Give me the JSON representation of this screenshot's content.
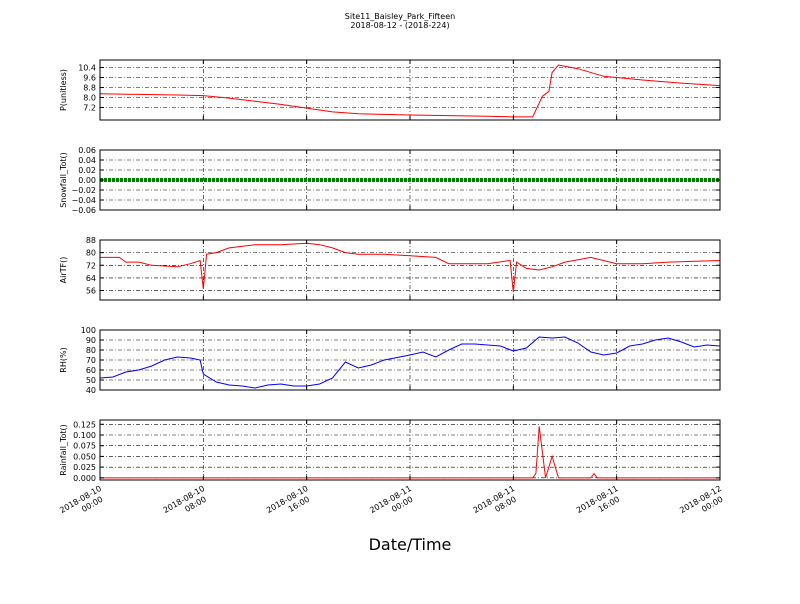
{
  "figure": {
    "title": "Site11_Baisley_Park_Fifteen",
    "subtitle": "2018-08-12 - (2018-224)",
    "xlabel": "Date/Time"
  },
  "chart_data": {
    "type": "line",
    "x_axis": {
      "type": "datetime",
      "range": [
        "2018-08-10 00:00",
        "2018-08-12 00:00"
      ],
      "ticks": [
        "2018-08-10 00:00",
        "2018-08-10 08:00",
        "2018-08-10 16:00",
        "2018-08-11 00:00",
        "2018-08-11 08:00",
        "2018-08-11 16:00",
        "2018-08-12 00:00"
      ],
      "tick_labels": [
        [
          "2018-08-10",
          "00:00"
        ],
        [
          "2018-08-10",
          "08:00"
        ],
        [
          "2018-08-10",
          "16:00"
        ],
        [
          "2018-08-11",
          "00:00"
        ],
        [
          "2018-08-11",
          "08:00"
        ],
        [
          "2018-08-11",
          "16:00"
        ],
        [
          "2018-08-12",
          "00:00"
        ]
      ]
    },
    "grid": true,
    "panels": [
      {
        "ylabel": "P(unitless)",
        "ylim": [
          6.2,
          11.0
        ],
        "yticks": [
          7.2,
          8.0,
          8.8,
          9.6,
          10.4
        ],
        "ytick_labels": [
          "7.2",
          "8.0",
          "8.8",
          "9.6",
          "10.4"
        ],
        "color": "#ff0000",
        "points": [
          [
            "2018-08-10 00:00",
            8.3
          ],
          [
            "2018-08-10 03:00",
            8.25
          ],
          [
            "2018-08-10 06:00",
            8.2
          ],
          [
            "2018-08-10 08:00",
            8.15
          ],
          [
            "2018-08-10 10:00",
            7.95
          ],
          [
            "2018-08-10 12:00",
            7.7
          ],
          [
            "2018-08-10 14:00",
            7.45
          ],
          [
            "2018-08-10 16:00",
            7.15
          ],
          [
            "2018-08-10 18:00",
            6.85
          ],
          [
            "2018-08-10 20:00",
            6.7
          ],
          [
            "2018-08-10 22:00",
            6.65
          ],
          [
            "2018-08-11 00:00",
            6.6
          ],
          [
            "2018-08-11 03:00",
            6.55
          ],
          [
            "2018-08-11 06:00",
            6.5
          ],
          [
            "2018-08-11 08:00",
            6.45
          ],
          [
            "2018-08-11 09:30",
            6.45
          ],
          [
            "2018-08-11 10:15",
            8.1
          ],
          [
            "2018-08-11 10:45",
            8.5
          ],
          [
            "2018-08-11 11:00",
            10.0
          ],
          [
            "2018-08-11 11:30",
            10.6
          ],
          [
            "2018-08-11 13:00",
            10.3
          ],
          [
            "2018-08-11 15:00",
            9.7
          ],
          [
            "2018-08-11 18:00",
            9.4
          ],
          [
            "2018-08-11 21:00",
            9.15
          ],
          [
            "2018-08-12 00:00",
            8.95
          ]
        ]
      },
      {
        "ylabel": "Snowfall_Tot()",
        "ylim": [
          -0.06,
          0.06
        ],
        "yticks": [
          -0.06,
          -0.04,
          -0.02,
          0.0,
          0.02,
          0.04,
          0.06
        ],
        "ytick_labels": [
          "−0.06",
          "−0.04",
          "−0.02",
          "0.00",
          "0.02",
          "0.04",
          "0.06"
        ],
        "color": "#008000",
        "constant": 0.0
      },
      {
        "ylabel": "AirTF()",
        "ylim": [
          50,
          88
        ],
        "yticks": [
          56,
          64,
          72,
          80,
          88
        ],
        "ytick_labels": [
          "56",
          "64",
          "72",
          "80",
          "88"
        ],
        "color": "#ff0000",
        "points": [
          [
            "2018-08-10 00:00",
            77
          ],
          [
            "2018-08-10 01:30",
            77
          ],
          [
            "2018-08-10 02:00",
            74
          ],
          [
            "2018-08-10 03:00",
            74
          ],
          [
            "2018-08-10 04:00",
            72
          ],
          [
            "2018-08-10 06:00",
            71
          ],
          [
            "2018-08-10 07:00",
            73
          ],
          [
            "2018-08-10 07:45",
            75
          ],
          [
            "2018-08-10 08:00",
            57
          ],
          [
            "2018-08-10 08:15",
            79
          ],
          [
            "2018-08-10 09:00",
            80
          ],
          [
            "2018-08-10 10:00",
            83
          ],
          [
            "2018-08-10 12:00",
            85
          ],
          [
            "2018-08-10 14:00",
            85
          ],
          [
            "2018-08-10 16:00",
            86
          ],
          [
            "2018-08-10 17:00",
            85
          ],
          [
            "2018-08-10 18:00",
            83
          ],
          [
            "2018-08-10 19:00",
            80
          ],
          [
            "2018-08-10 20:00",
            79
          ],
          [
            "2018-08-10 22:00",
            79
          ],
          [
            "2018-08-11 00:00",
            78
          ],
          [
            "2018-08-11 02:00",
            77
          ],
          [
            "2018-08-11 03:00",
            73
          ],
          [
            "2018-08-11 06:00",
            73
          ],
          [
            "2018-08-11 07:45",
            75
          ],
          [
            "2018-08-11 08:00",
            55
          ],
          [
            "2018-08-11 08:15",
            74
          ],
          [
            "2018-08-11 09:00",
            70
          ],
          [
            "2018-08-11 10:00",
            69
          ],
          [
            "2018-08-11 11:00",
            71
          ],
          [
            "2018-08-11 12:00",
            74
          ],
          [
            "2018-08-11 14:00",
            77
          ],
          [
            "2018-08-11 16:00",
            73
          ],
          [
            "2018-08-11 18:00",
            73
          ],
          [
            "2018-08-11 20:00",
            74
          ],
          [
            "2018-08-12 00:00",
            75
          ]
        ]
      },
      {
        "ylabel": "RH(%)",
        "ylim": [
          40,
          100
        ],
        "yticks": [
          40,
          50,
          60,
          70,
          80,
          90,
          100
        ],
        "ytick_labels": [
          "40",
          "50",
          "60",
          "70",
          "80",
          "90",
          "100"
        ],
        "color": "#0000ff",
        "points": [
          [
            "2018-08-10 00:00",
            52
          ],
          [
            "2018-08-10 01:00",
            53
          ],
          [
            "2018-08-10 02:00",
            58
          ],
          [
            "2018-08-10 03:00",
            60
          ],
          [
            "2018-08-10 04:00",
            64
          ],
          [
            "2018-08-10 05:00",
            70
          ],
          [
            "2018-08-10 06:00",
            73
          ],
          [
            "2018-08-10 07:00",
            72
          ],
          [
            "2018-08-10 07:45",
            70
          ],
          [
            "2018-08-10 08:00",
            56
          ],
          [
            "2018-08-10 09:00",
            48
          ],
          [
            "2018-08-10 10:00",
            45
          ],
          [
            "2018-08-10 11:00",
            44
          ],
          [
            "2018-08-10 12:00",
            42
          ],
          [
            "2018-08-10 13:00",
            45
          ],
          [
            "2018-08-10 14:00",
            46
          ],
          [
            "2018-08-10 15:00",
            44
          ],
          [
            "2018-08-10 16:00",
            44
          ],
          [
            "2018-08-10 17:00",
            46
          ],
          [
            "2018-08-10 18:00",
            52
          ],
          [
            "2018-08-10 19:00",
            68
          ],
          [
            "2018-08-10 20:00",
            62
          ],
          [
            "2018-08-10 21:00",
            65
          ],
          [
            "2018-08-10 22:00",
            70
          ],
          [
            "2018-08-11 00:00",
            75
          ],
          [
            "2018-08-11 01:00",
            78
          ],
          [
            "2018-08-11 02:00",
            73
          ],
          [
            "2018-08-11 03:00",
            80
          ],
          [
            "2018-08-11 04:00",
            86
          ],
          [
            "2018-08-11 05:00",
            86
          ],
          [
            "2018-08-11 06:00",
            85
          ],
          [
            "2018-08-11 07:00",
            84
          ],
          [
            "2018-08-11 08:00",
            79
          ],
          [
            "2018-08-11 09:00",
            82
          ],
          [
            "2018-08-11 10:00",
            93
          ],
          [
            "2018-08-11 11:00",
            92
          ],
          [
            "2018-08-11 12:00",
            93
          ],
          [
            "2018-08-11 13:00",
            87
          ],
          [
            "2018-08-11 14:00",
            78
          ],
          [
            "2018-08-11 15:00",
            75
          ],
          [
            "2018-08-11 16:00",
            77
          ],
          [
            "2018-08-11 17:00",
            84
          ],
          [
            "2018-08-11 18:00",
            86
          ],
          [
            "2018-08-11 19:00",
            90
          ],
          [
            "2018-08-11 20:00",
            92
          ],
          [
            "2018-08-11 21:00",
            88
          ],
          [
            "2018-08-11 22:00",
            83
          ],
          [
            "2018-08-11 23:00",
            85
          ],
          [
            "2018-08-12 00:00",
            84
          ]
        ]
      },
      {
        "ylabel": "Rainfall_Tot()",
        "ylim": [
          -0.005,
          0.135
        ],
        "yticks": [
          0.0,
          0.025,
          0.05,
          0.075,
          0.1,
          0.125
        ],
        "ytick_labels": [
          "0.000",
          "0.025",
          "0.050",
          "0.075",
          "0.100",
          "0.125"
        ],
        "color": "#ff0000",
        "points": [
          [
            "2018-08-10 00:00",
            0.0
          ],
          [
            "2018-08-11 09:30",
            0.0
          ],
          [
            "2018-08-11 09:45",
            0.01
          ],
          [
            "2018-08-11 10:00",
            0.12
          ],
          [
            "2018-08-11 10:30",
            0.0
          ],
          [
            "2018-08-11 11:00",
            0.05
          ],
          [
            "2018-08-11 11:30",
            0.0
          ],
          [
            "2018-08-11 14:00",
            0.0
          ],
          [
            "2018-08-11 14:15",
            0.01
          ],
          [
            "2018-08-11 14:30",
            0.0
          ],
          [
            "2018-08-12 00:00",
            0.0
          ]
        ]
      }
    ]
  }
}
